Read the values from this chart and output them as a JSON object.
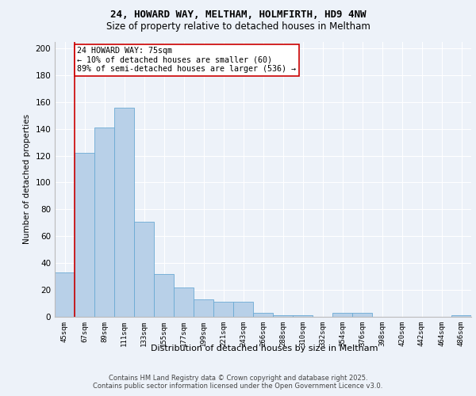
{
  "title1": "24, HOWARD WAY, MELTHAM, HOLMFIRTH, HD9 4NW",
  "title2": "Size of property relative to detached houses in Meltham",
  "xlabel": "Distribution of detached houses by size in Meltham",
  "ylabel": "Number of detached properties",
  "categories": [
    "45sqm",
    "67sqm",
    "89sqm",
    "111sqm",
    "133sqm",
    "155sqm",
    "177sqm",
    "199sqm",
    "221sqm",
    "243sqm",
    "266sqm",
    "288sqm",
    "310sqm",
    "332sqm",
    "354sqm",
    "376sqm",
    "398sqm",
    "420sqm",
    "442sqm",
    "464sqm",
    "486sqm"
  ],
  "values": [
    33,
    122,
    141,
    156,
    71,
    32,
    22,
    13,
    11,
    11,
    3,
    1,
    1,
    0,
    3,
    3,
    0,
    0,
    0,
    0,
    1
  ],
  "bar_color": "#b8d0e8",
  "bar_edge_color": "#6aaad4",
  "annotation_title": "24 HOWARD WAY: 75sqm",
  "annotation_line1": "← 10% of detached houses are smaller (60)",
  "annotation_line2": "89% of semi-detached houses are larger (536) →",
  "annotation_box_color": "#ffffff",
  "annotation_box_edge": "#cc0000",
  "red_line_color": "#cc0000",
  "ylim": [
    0,
    205
  ],
  "yticks": [
    0,
    20,
    40,
    60,
    80,
    100,
    120,
    140,
    160,
    180,
    200
  ],
  "footer1": "Contains HM Land Registry data © Crown copyright and database right 2025.",
  "footer2": "Contains public sector information licensed under the Open Government Licence v3.0.",
  "bg_color": "#edf2f9",
  "plot_bg_color": "#edf2f9"
}
